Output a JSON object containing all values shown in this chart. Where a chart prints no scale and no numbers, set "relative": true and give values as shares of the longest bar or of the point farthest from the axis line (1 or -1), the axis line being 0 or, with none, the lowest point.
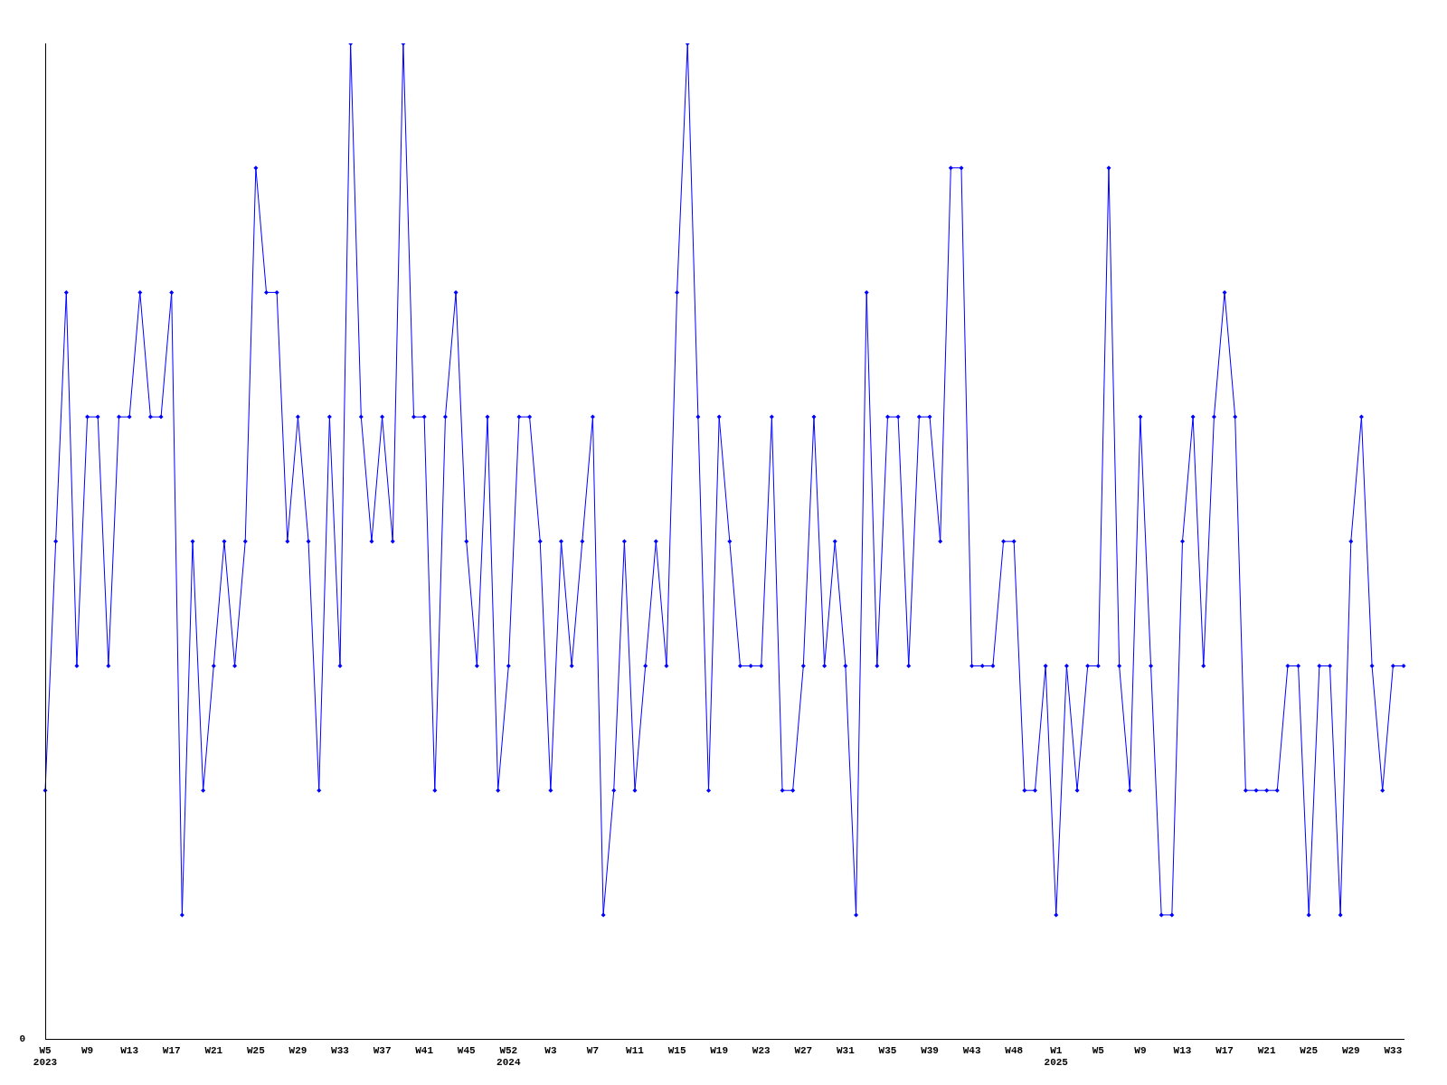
{
  "chart_data": {
    "type": "line",
    "relative": true,
    "color": "#0000ff",
    "marker": "diamond",
    "grid": false,
    "legend": false,
    "annotations": [
      "0"
    ],
    "categories": [
      "W5\n2023",
      null,
      null,
      null,
      "W9",
      null,
      null,
      null,
      "W13",
      null,
      null,
      null,
      "W17",
      null,
      null,
      null,
      "W21",
      null,
      null,
      null,
      "W25",
      null,
      null,
      null,
      "W29",
      null,
      null,
      null,
      "W33",
      null,
      null,
      null,
      "W37",
      null,
      null,
      null,
      "W41",
      null,
      null,
      null,
      "W45",
      null,
      null,
      null,
      "W52\n2024",
      null,
      null,
      null,
      "W3",
      null,
      null,
      null,
      "W7",
      null,
      null,
      null,
      "W11",
      null,
      null,
      null,
      "W15",
      null,
      null,
      null,
      "W19",
      null,
      null,
      null,
      "W23",
      null,
      null,
      null,
      "W27",
      null,
      null,
      null,
      "W31",
      null,
      null,
      null,
      "W35",
      null,
      null,
      null,
      "W39",
      null,
      null,
      null,
      "W43",
      null,
      null,
      null,
      "W48",
      null,
      null,
      null,
      "W1\n2025",
      null,
      null,
      null,
      "W5",
      null,
      null,
      null,
      "W9",
      null,
      null,
      null,
      "W13",
      null,
      null,
      null,
      "W17",
      null,
      null,
      null,
      "W21",
      null,
      null,
      null,
      "W25",
      null,
      null,
      null,
      "W29",
      null,
      null,
      null,
      "W33",
      null
    ],
    "values": [
      0.25,
      0.5,
      0.75,
      0.375,
      0.625,
      0.625,
      0.375,
      0.625,
      0.625,
      0.75,
      0.625,
      0.625,
      0.75,
      0.125,
      0.5,
      0.25,
      0.375,
      0.5,
      0.375,
      0.5,
      0.875,
      0.75,
      0.75,
      0.5,
      0.625,
      0.5,
      0.25,
      0.625,
      0.375,
      1,
      0.625,
      0.5,
      0.625,
      0.5,
      1,
      0.625,
      0.625,
      0.25,
      0.625,
      0.75,
      0.5,
      0.375,
      0.625,
      0.25,
      0.375,
      0.625,
      0.625,
      0.5,
      0.25,
      0.5,
      0.375,
      0.5,
      0.625,
      0.125,
      0.25,
      0.5,
      0.25,
      0.375,
      0.5,
      0.375,
      0.75,
      1,
      0.625,
      0.25,
      0.625,
      0.5,
      0.375,
      0.375,
      0.375,
      0.625,
      0.25,
      0.25,
      0.375,
      0.625,
      0.375,
      0.5,
      0.375,
      0.125,
      0.75,
      0.375,
      0.625,
      0.625,
      0.375,
      0.625,
      0.625,
      0.5,
      0.875,
      0.875,
      0.375,
      0.375,
      0.375,
      0.5,
      0.5,
      0.25,
      0.25,
      0.375,
      0.125,
      0.375,
      0.25,
      0.375,
      0.375,
      0.875,
      0.375,
      0.25,
      0.625,
      0.375,
      0.125,
      0.125,
      0.5,
      0.625,
      0.375,
      0.625,
      0.75,
      0.625,
      0.25,
      0.25,
      0.25,
      0.25,
      0.375,
      0.375,
      0.125,
      0.375,
      0.375,
      0.125,
      0.5,
      0.625,
      0.375,
      0.25,
      0.375,
      0.375
    ]
  }
}
